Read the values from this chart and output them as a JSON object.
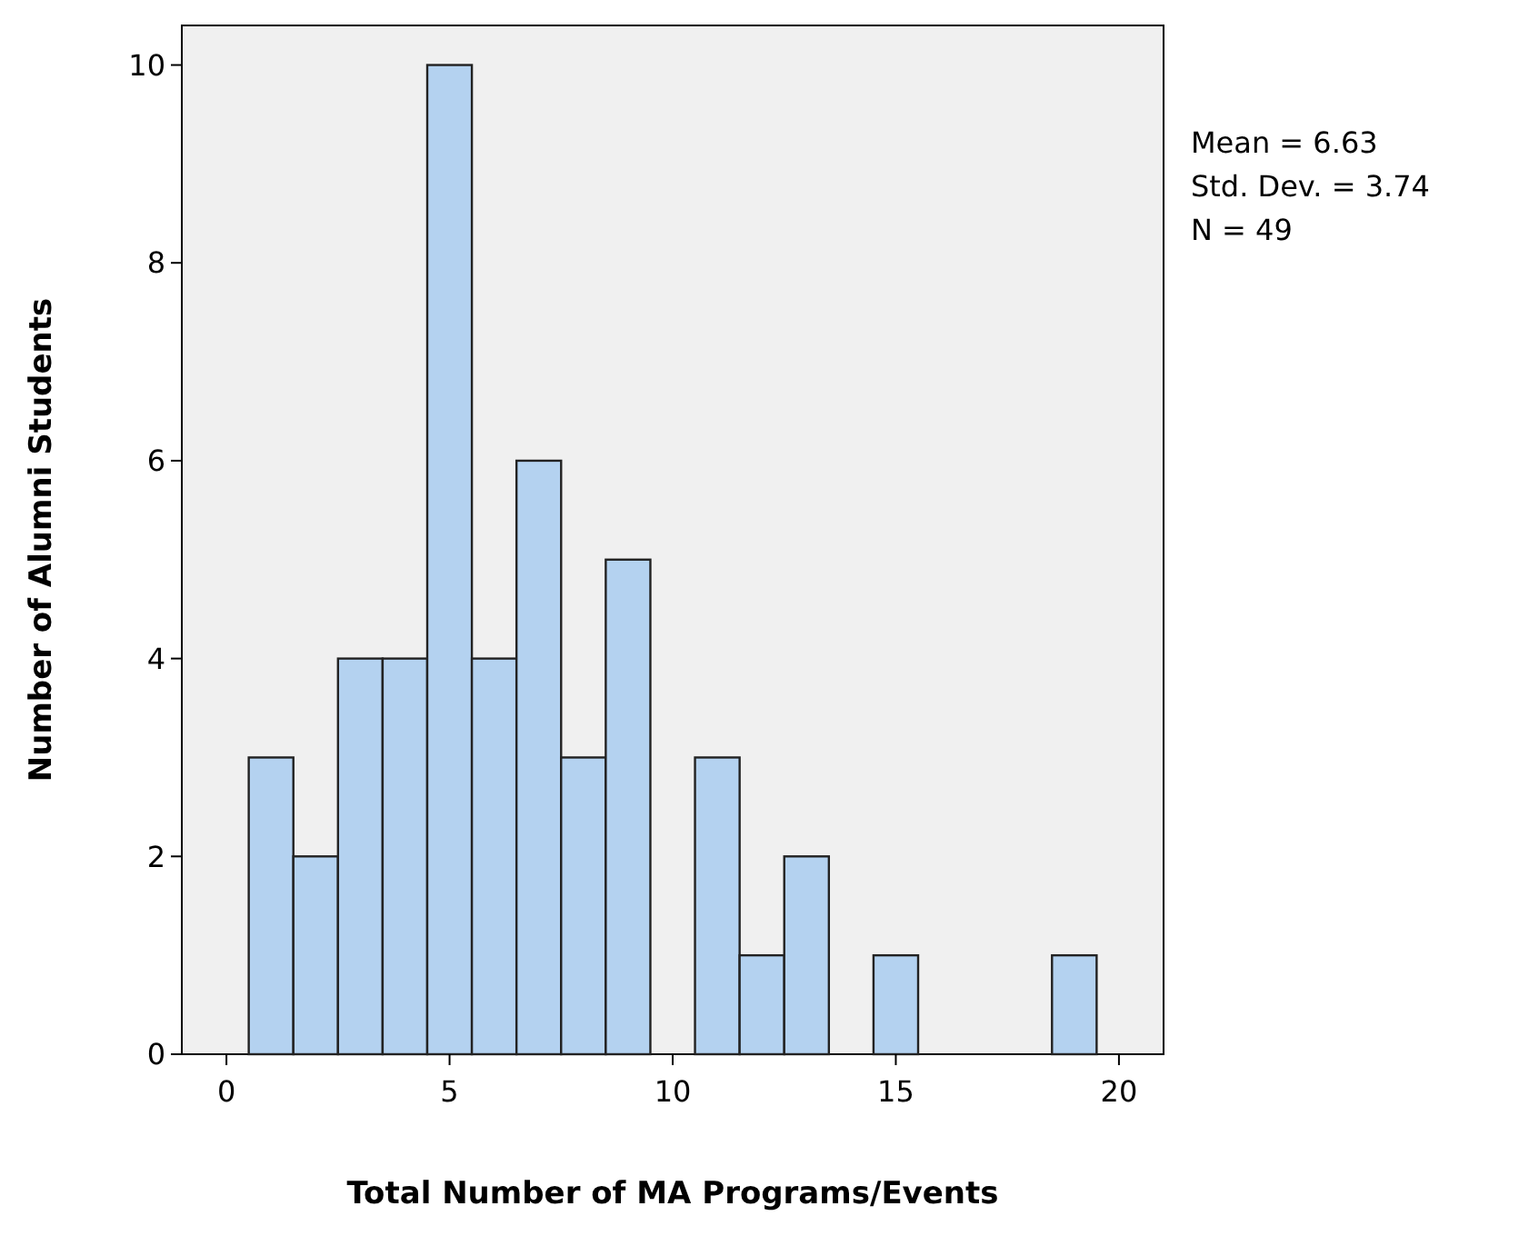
{
  "chart_data": {
    "type": "histogram",
    "xlabel": "Total Number of MA Programs/Events",
    "ylabel": "Number of Alumni Students",
    "bins": [
      0.5,
      1.5,
      2.5,
      3.5,
      4.5,
      5.5,
      6.5,
      7.5,
      8.5,
      9.5,
      10.5,
      11.5,
      12.5,
      13.5,
      14.5,
      15.5,
      16.5,
      17.5,
      18.5,
      19.5
    ],
    "values": [
      3,
      2,
      4,
      4,
      10,
      4,
      6,
      3,
      5,
      0,
      3,
      1,
      2,
      0,
      1,
      0,
      0,
      0,
      1
    ],
    "color": "#b4d2f0",
    "xlim": [
      -1,
      21
    ],
    "xticks": [
      0,
      5,
      10,
      15,
      20
    ],
    "ylim": [
      0,
      10.4
    ],
    "yticks": [
      0,
      2,
      4,
      6,
      8,
      10
    ],
    "grid": false,
    "annotations": [
      "Mean = 6.63",
      "Std. Dev. = 3.74",
      "N = 49"
    ]
  }
}
